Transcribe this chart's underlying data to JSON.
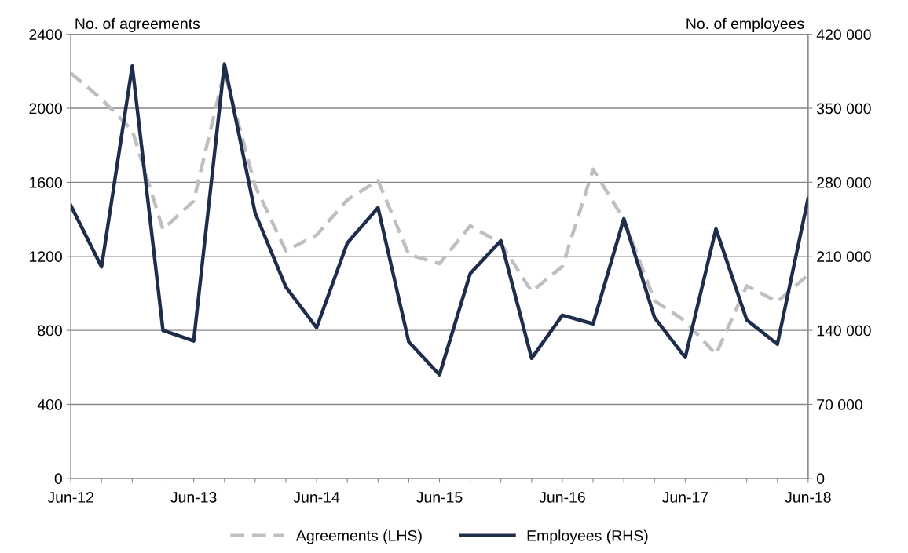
{
  "chart_data": {
    "type": "line",
    "ylabel": "No. of agreements",
    "y2label": "No. of employees",
    "categories": [
      "Jun-12",
      null,
      null,
      null,
      "Jun-13",
      null,
      null,
      null,
      "Jun-14",
      null,
      null,
      null,
      "Jun-15",
      null,
      null,
      null,
      "Jun-16",
      null,
      null,
      null,
      "Jun-17",
      null,
      null,
      null,
      "Jun-18"
    ],
    "series": [
      {
        "name": "Agreements (LHS)",
        "color": "#bfbfbf",
        "line_style": "dashed",
        "values": [
          2190,
          2050,
          1880,
          1345,
          1500,
          2200,
          1580,
          1230,
          1315,
          1505,
          1610,
          1210,
          1160,
          1365,
          1270,
          1010,
          1145,
          1670,
          1400,
          960,
          850,
          670,
          1040,
          955,
          1100
        ]
      },
      {
        "name": "Employees (RHS)",
        "color": "#1f2d4d",
        "line_style": "solid",
        "axis": "y2",
        "values": [
          258000,
          200000,
          390000,
          140000,
          130000,
          392000,
          251000,
          181000,
          142500,
          222600,
          256000,
          129100,
          98000,
          193700,
          224800,
          113500,
          154300,
          146200,
          245600,
          152100,
          114300,
          236000,
          149900,
          126900,
          264900
        ]
      }
    ],
    "ylim": [
      0,
      2400
    ],
    "yticks": [
      0,
      400,
      800,
      1200,
      1600,
      2000,
      2400
    ],
    "y2lim": [
      0,
      420000
    ],
    "y2ticks": [
      {
        "value": 0,
        "label": "0"
      },
      {
        "value": 70000,
        "label": "70 000"
      },
      {
        "value": 140000,
        "label": "140 000"
      },
      {
        "value": 210000,
        "label": "210 000"
      },
      {
        "value": 280000,
        "label": "280 000"
      },
      {
        "value": 350000,
        "label": "350 000"
      },
      {
        "value": 420000,
        "label": "420 000"
      }
    ],
    "grid": "y",
    "legend": "bottom",
    "marker": "none"
  }
}
